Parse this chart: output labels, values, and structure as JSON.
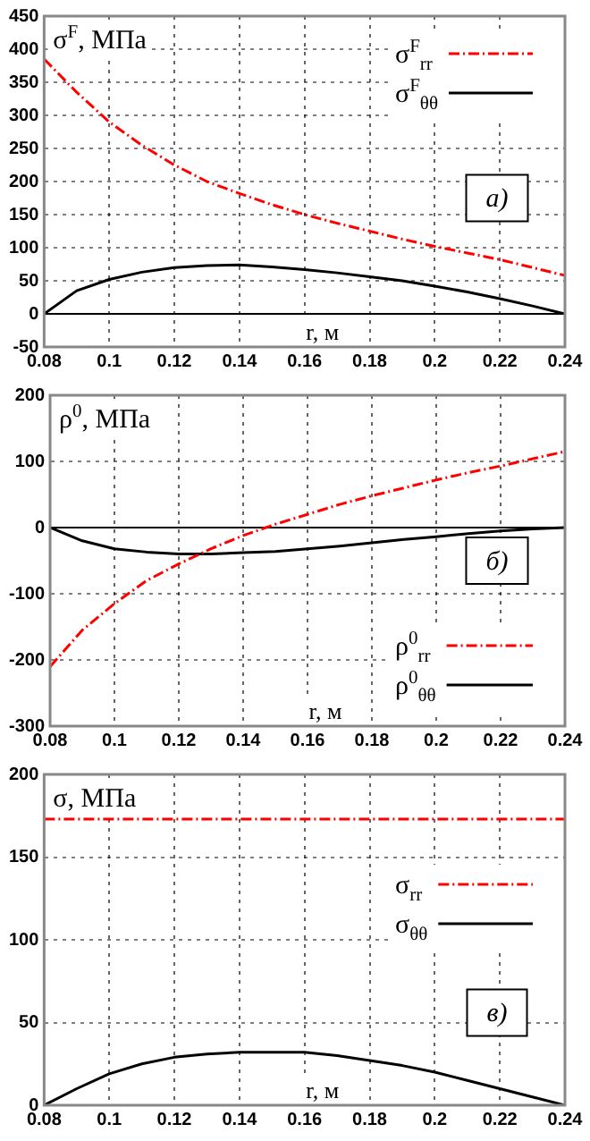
{
  "chart_data": [
    {
      "type": "line",
      "ylabel": "σ$^{F}$, МПа",
      "xlabel": "r, м",
      "annotations": [
        "а)"
      ],
      "xlim": [
        0.08,
        0.24
      ],
      "xticks": [
        0.08,
        0.1,
        0.12,
        0.14,
        0.16,
        0.18,
        0.2,
        0.22,
        0.24
      ],
      "ylim": [
        -50,
        450
      ],
      "yticks": [
        -50,
        0,
        50,
        100,
        150,
        200,
        250,
        300,
        350,
        400,
        450
      ],
      "grid": true,
      "legend": "top right",
      "marker": "none",
      "ref_lines": [
        {
          "axis": "y",
          "value": 0,
          "color": "#000000"
        }
      ],
      "x": [
        0.08,
        0.09,
        0.1,
        0.11,
        0.12,
        0.13,
        0.14,
        0.15,
        0.16,
        0.17,
        0.18,
        0.19,
        0.2,
        0.21,
        0.22,
        0.23,
        0.24
      ],
      "series": [
        {
          "name": "σ$^{F}$$_{rr}$",
          "color": "#ff0000",
          "line_style": "dashed",
          "values": [
            385,
            335,
            290,
            255,
            225,
            200,
            182,
            165,
            150,
            137,
            125,
            113,
            102,
            92,
            82,
            70,
            58
          ]
        },
        {
          "name": "σ$^{F}$$_{θθ}$",
          "color": "#000000",
          "line_style": "solid",
          "values": [
            0,
            35,
            52,
            63,
            70,
            73,
            74,
            71,
            67,
            62,
            56,
            50,
            42,
            33,
            23,
            12,
            0
          ]
        }
      ]
    },
    {
      "type": "line",
      "ylabel": "ρ$^{0}$, МПа",
      "xlabel": "r, м",
      "annotations": [
        "б)"
      ],
      "xlim": [
        0.08,
        0.24
      ],
      "xticks": [
        0.08,
        0.1,
        0.12,
        0.14,
        0.16,
        0.18,
        0.2,
        0.22,
        0.24
      ],
      "ylim": [
        -300,
        200
      ],
      "yticks": [
        -300,
        -200,
        -100,
        0,
        100,
        200
      ],
      "grid": true,
      "legend": "bottom right",
      "marker": "none",
      "ref_lines": [
        {
          "axis": "y",
          "value": 0,
          "color": "#000000"
        }
      ],
      "x": [
        0.08,
        0.09,
        0.1,
        0.11,
        0.12,
        0.13,
        0.14,
        0.15,
        0.16,
        0.17,
        0.18,
        0.19,
        0.2,
        0.21,
        0.22,
        0.23,
        0.24
      ],
      "series": [
        {
          "name": "ρ$^{0}$$_{rr}$",
          "color": "#ff0000",
          "line_style": "dashed",
          "values": [
            -210,
            -155,
            -115,
            -80,
            -55,
            -32,
            -12,
            5,
            20,
            35,
            48,
            60,
            72,
            83,
            93,
            104,
            115
          ]
        },
        {
          "name": "ρ$^{0}$$_{θθ}$",
          "color": "#000000",
          "line_style": "solid",
          "values": [
            0,
            -20,
            -32,
            -37,
            -40,
            -40,
            -38,
            -36,
            -32,
            -28,
            -23,
            -18,
            -14,
            -9,
            -5,
            -2,
            0
          ]
        }
      ]
    },
    {
      "type": "line",
      "ylabel": "σ, МПа",
      "xlabel": "r, м",
      "annotations": [
        "в)"
      ],
      "xlim": [
        0.08,
        0.24
      ],
      "xticks": [
        0.08,
        0.1,
        0.12,
        0.14,
        0.16,
        0.18,
        0.2,
        0.22,
        0.24
      ],
      "ylim": [
        0,
        200
      ],
      "yticks": [
        0,
        50,
        100,
        150,
        200
      ],
      "grid": true,
      "legend": "right",
      "marker": "none",
      "x": [
        0.08,
        0.09,
        0.1,
        0.11,
        0.12,
        0.13,
        0.14,
        0.15,
        0.16,
        0.17,
        0.18,
        0.19,
        0.2,
        0.21,
        0.22,
        0.23,
        0.24
      ],
      "series": [
        {
          "name": "σ$_{rr}$",
          "color": "#ff0000",
          "line_style": "dashed",
          "values": [
            173,
            173,
            173,
            173,
            173,
            173,
            173,
            173,
            173,
            173,
            173,
            173,
            173,
            173,
            173,
            173,
            173
          ]
        },
        {
          "name": "σ$_{θθ}$",
          "color": "#000000",
          "line_style": "solid",
          "values": [
            0,
            10,
            19,
            25,
            29,
            31,
            32,
            32,
            32,
            30,
            27,
            24,
            20,
            15,
            10,
            5,
            0
          ]
        }
      ]
    }
  ]
}
